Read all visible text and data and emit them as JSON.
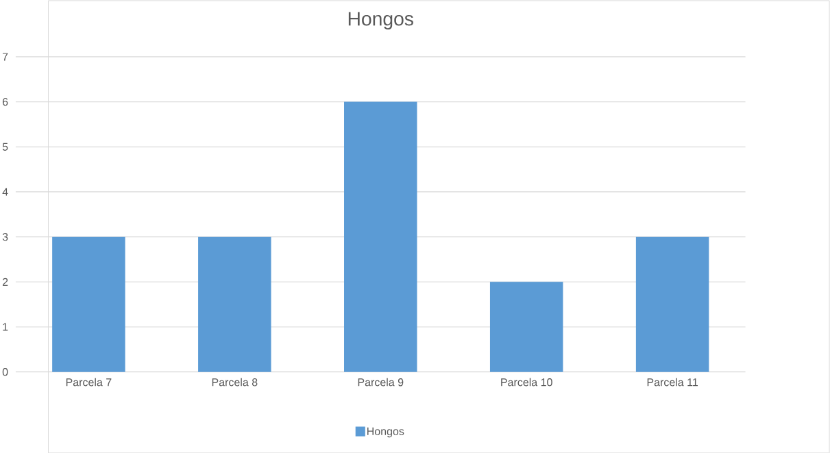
{
  "chart_data": {
    "type": "bar",
    "title": "Hongos",
    "categories": [
      "Parcela 7",
      "Parcela 8",
      "Parcela 9",
      "Parcela 10",
      "Parcela 11"
    ],
    "series": [
      {
        "name": "Hongos",
        "color": "#5b9bd5",
        "values": [
          3,
          3,
          6,
          2,
          3
        ]
      }
    ],
    "ylim": [
      0,
      7
    ],
    "yticks": [
      0,
      1,
      2,
      3,
      4,
      5,
      6,
      7
    ],
    "grid": "y",
    "legend": "bottom"
  }
}
